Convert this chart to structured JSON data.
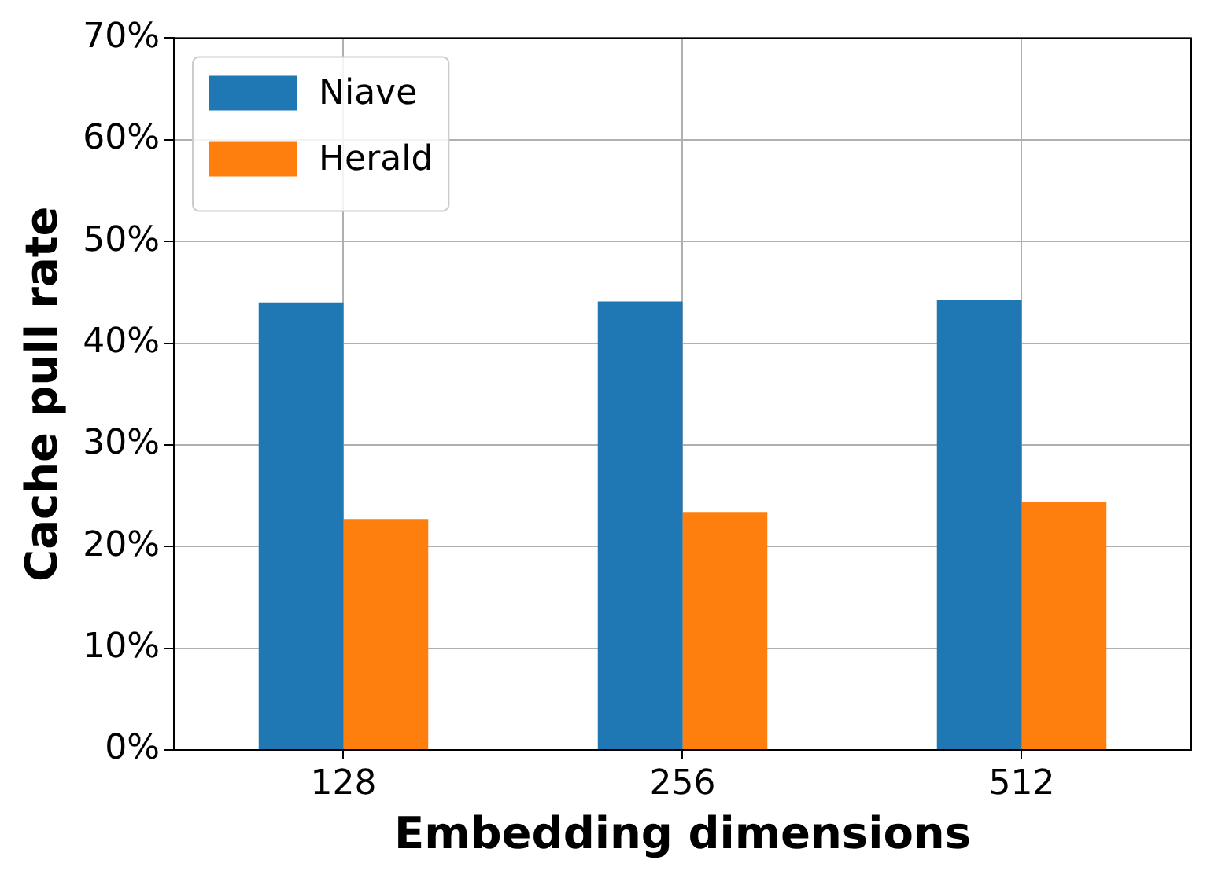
{
  "chart_data": {
    "type": "bar",
    "xlabel": "Embedding dimensions",
    "ylabel": "Cache pull rate",
    "categories": [
      "128",
      "256",
      "512"
    ],
    "series": [
      {
        "name": "Niave",
        "color": "#1f77b4",
        "values": [
          44.0,
          44.1,
          44.3
        ]
      },
      {
        "name": "Herald",
        "color": "#ff7f0e",
        "values": [
          22.7,
          23.4,
          24.4
        ]
      }
    ],
    "ylim": [
      0,
      70
    ],
    "yticks": [
      {
        "value": 0,
        "label": "0%"
      },
      {
        "value": 10,
        "label": "10%"
      },
      {
        "value": 20,
        "label": "20%"
      },
      {
        "value": 30,
        "label": "30%"
      },
      {
        "value": 40,
        "label": "40%"
      },
      {
        "value": 50,
        "label": "50%"
      },
      {
        "value": 60,
        "label": "60%"
      },
      {
        "value": 70,
        "label": "70%"
      }
    ],
    "grid": true,
    "legend": "top left"
  }
}
